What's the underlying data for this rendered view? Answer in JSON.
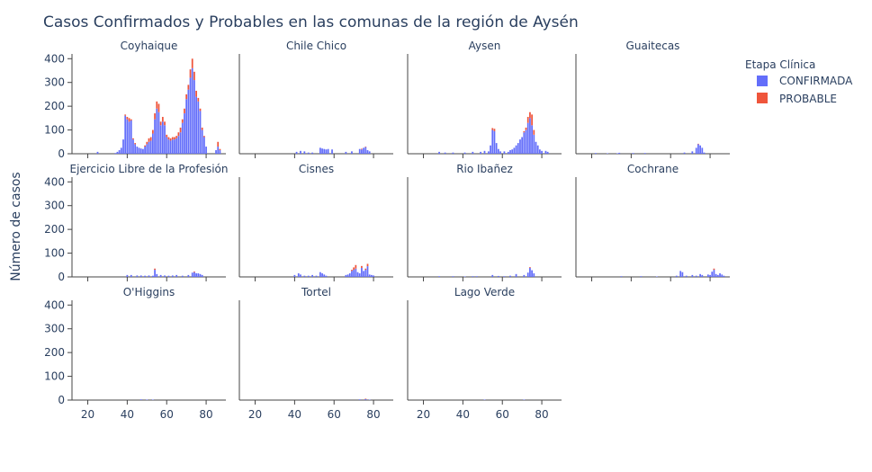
{
  "chart_data": {
    "type": "bar",
    "barmode": "stack",
    "title": "Casos Confirmados y Probables en las comunas de la región de Aysén",
    "ylabel": "Número de casos",
    "xlabel": "",
    "ylim": [
      0,
      420
    ],
    "xlim": [
      12,
      90
    ],
    "x_ticks": [
      20,
      40,
      60,
      80
    ],
    "y_ticks": [
      0,
      100,
      200,
      300,
      400
    ],
    "legend": {
      "title": "Etapa Clínica",
      "position": "top-right",
      "entries": [
        {
          "name": "CONFIRMADA",
          "color": "#636efa"
        },
        {
          "name": "PROBABLE",
          "color": "#ef553b"
        }
      ]
    },
    "panels": [
      {
        "title": "Coyhaique",
        "confirmed": [
          [
            25,
            8
          ],
          [
            34,
            3
          ],
          [
            35,
            8
          ],
          [
            36,
            15
          ],
          [
            37,
            25
          ],
          [
            38,
            60
          ],
          [
            39,
            160
          ],
          [
            40,
            145
          ],
          [
            41,
            135
          ],
          [
            42,
            140
          ],
          [
            43,
            60
          ],
          [
            44,
            40
          ],
          [
            45,
            30
          ],
          [
            46,
            25
          ],
          [
            47,
            22
          ],
          [
            48,
            20
          ],
          [
            49,
            30
          ],
          [
            50,
            40
          ],
          [
            51,
            50
          ],
          [
            52,
            55
          ],
          [
            53,
            85
          ],
          [
            54,
            145
          ],
          [
            55,
            190
          ],
          [
            56,
            175
          ],
          [
            57,
            120
          ],
          [
            58,
            135
          ],
          [
            59,
            120
          ],
          [
            60,
            70
          ],
          [
            61,
            60
          ],
          [
            62,
            55
          ],
          [
            63,
            60
          ],
          [
            64,
            60
          ],
          [
            65,
            65
          ],
          [
            66,
            75
          ],
          [
            67,
            90
          ],
          [
            68,
            130
          ],
          [
            69,
            170
          ],
          [
            70,
            230
          ],
          [
            71,
            270
          ],
          [
            72,
            320
          ],
          [
            73,
            360
          ],
          [
            74,
            310
          ],
          [
            75,
            240
          ],
          [
            76,
            220
          ],
          [
            77,
            180
          ],
          [
            78,
            100
          ],
          [
            79,
            70
          ],
          [
            80,
            30
          ],
          [
            85,
            15
          ],
          [
            86,
            30
          ],
          [
            87,
            15
          ]
        ],
        "probable": [
          [
            38,
            0
          ],
          [
            39,
            5
          ],
          [
            40,
            10
          ],
          [
            41,
            15
          ],
          [
            42,
            5
          ],
          [
            43,
            5
          ],
          [
            44,
            5
          ],
          [
            49,
            5
          ],
          [
            50,
            10
          ],
          [
            51,
            15
          ],
          [
            52,
            15
          ],
          [
            53,
            15
          ],
          [
            54,
            25
          ],
          [
            55,
            30
          ],
          [
            56,
            35
          ],
          [
            57,
            15
          ],
          [
            58,
            20
          ],
          [
            59,
            15
          ],
          [
            60,
            10
          ],
          [
            61,
            10
          ],
          [
            62,
            10
          ],
          [
            63,
            10
          ],
          [
            64,
            10
          ],
          [
            65,
            10
          ],
          [
            66,
            15
          ],
          [
            67,
            20
          ],
          [
            68,
            15
          ],
          [
            69,
            20
          ],
          [
            70,
            20
          ],
          [
            71,
            20
          ],
          [
            72,
            35
          ],
          [
            73,
            40
          ],
          [
            74,
            35
          ],
          [
            75,
            25
          ],
          [
            76,
            15
          ],
          [
            77,
            10
          ],
          [
            78,
            10
          ],
          [
            79,
            5
          ],
          [
            86,
            20
          ],
          [
            87,
            5
          ]
        ]
      },
      {
        "title": "Chile Chico",
        "confirmed": [
          [
            41,
            8
          ],
          [
            43,
            12
          ],
          [
            45,
            10
          ],
          [
            47,
            5
          ],
          [
            49,
            5
          ],
          [
            53,
            25
          ],
          [
            54,
            22
          ],
          [
            55,
            20
          ],
          [
            56,
            18
          ],
          [
            57,
            20
          ],
          [
            59,
            18
          ],
          [
            66,
            8
          ],
          [
            69,
            10
          ],
          [
            73,
            20
          ],
          [
            74,
            18
          ],
          [
            75,
            25
          ],
          [
            76,
            28
          ],
          [
            77,
            15
          ],
          [
            78,
            10
          ]
        ],
        "probable": [
          [
            74,
            3
          ],
          [
            76,
            2
          ]
        ]
      },
      {
        "title": "Aysen",
        "confirmed": [
          [
            28,
            8
          ],
          [
            31,
            5
          ],
          [
            35,
            5
          ],
          [
            41,
            5
          ],
          [
            45,
            8
          ],
          [
            49,
            8
          ],
          [
            51,
            12
          ],
          [
            53,
            10
          ],
          [
            54,
            35
          ],
          [
            55,
            100
          ],
          [
            56,
            95
          ],
          [
            57,
            45
          ],
          [
            58,
            20
          ],
          [
            59,
            10
          ],
          [
            61,
            10
          ],
          [
            63,
            8
          ],
          [
            64,
            15
          ],
          [
            65,
            18
          ],
          [
            66,
            25
          ],
          [
            67,
            35
          ],
          [
            68,
            45
          ],
          [
            69,
            60
          ],
          [
            70,
            70
          ],
          [
            71,
            90
          ],
          [
            72,
            100
          ],
          [
            73,
            130
          ],
          [
            74,
            150
          ],
          [
            75,
            120
          ],
          [
            76,
            80
          ],
          [
            77,
            50
          ],
          [
            78,
            35
          ],
          [
            79,
            18
          ],
          [
            80,
            12
          ],
          [
            82,
            12
          ],
          [
            83,
            8
          ]
        ],
        "probable": [
          [
            55,
            8
          ],
          [
            56,
            10
          ],
          [
            71,
            5
          ],
          [
            72,
            10
          ],
          [
            73,
            25
          ],
          [
            74,
            25
          ],
          [
            75,
            45
          ],
          [
            76,
            20
          ]
        ]
      },
      {
        "title": "Guaitecas",
        "confirmed": [
          [
            22,
            3
          ],
          [
            28,
            2
          ],
          [
            33,
            2
          ],
          [
            34,
            4
          ],
          [
            41,
            3
          ],
          [
            47,
            3
          ],
          [
            67,
            5
          ],
          [
            71,
            10
          ],
          [
            73,
            25
          ],
          [
            74,
            40
          ],
          [
            75,
            35
          ],
          [
            76,
            25
          ],
          [
            77,
            5
          ]
        ],
        "probable": [
          [
            74,
            2
          ]
        ]
      },
      {
        "title": "Ejercicio Libre de la Profesión",
        "confirmed": [
          [
            40,
            8
          ],
          [
            42,
            8
          ],
          [
            45,
            6
          ],
          [
            47,
            6
          ],
          [
            49,
            5
          ],
          [
            51,
            6
          ],
          [
            53,
            5
          ],
          [
            54,
            30
          ],
          [
            55,
            12
          ],
          [
            57,
            8
          ],
          [
            59,
            6
          ],
          [
            61,
            5
          ],
          [
            63,
            6
          ],
          [
            65,
            8
          ],
          [
            68,
            5
          ],
          [
            71,
            8
          ],
          [
            73,
            18
          ],
          [
            74,
            20
          ],
          [
            75,
            15
          ],
          [
            76,
            15
          ],
          [
            77,
            12
          ],
          [
            78,
            8
          ]
        ],
        "probable": [
          [
            54,
            5
          ],
          [
            74,
            3
          ]
        ]
      },
      {
        "title": "Cisnes",
        "confirmed": [
          [
            40,
            8
          ],
          [
            42,
            15
          ],
          [
            43,
            10
          ],
          [
            45,
            5
          ],
          [
            47,
            5
          ],
          [
            49,
            8
          ],
          [
            51,
            5
          ],
          [
            53,
            20
          ],
          [
            54,
            15
          ],
          [
            55,
            10
          ],
          [
            56,
            5
          ],
          [
            66,
            8
          ],
          [
            67,
            10
          ],
          [
            68,
            15
          ],
          [
            69,
            25
          ],
          [
            70,
            30
          ],
          [
            71,
            35
          ],
          [
            72,
            20
          ],
          [
            73,
            15
          ],
          [
            74,
            38
          ],
          [
            75,
            25
          ],
          [
            76,
            30
          ],
          [
            77,
            45
          ],
          [
            78,
            10
          ],
          [
            79,
            8
          ],
          [
            80,
            6
          ]
        ],
        "probable": [
          [
            69,
            5
          ],
          [
            70,
            10
          ],
          [
            71,
            15
          ],
          [
            74,
            8
          ],
          [
            76,
            5
          ],
          [
            77,
            10
          ]
        ]
      },
      {
        "title": "Rio Ibañez",
        "confirmed": [
          [
            28,
            3
          ],
          [
            35,
            3
          ],
          [
            41,
            2
          ],
          [
            45,
            3
          ],
          [
            47,
            3
          ],
          [
            55,
            8
          ],
          [
            58,
            4
          ],
          [
            61,
            3
          ],
          [
            64,
            5
          ],
          [
            67,
            12
          ],
          [
            71,
            8
          ],
          [
            73,
            18
          ],
          [
            74,
            38
          ],
          [
            75,
            28
          ],
          [
            76,
            15
          ]
        ],
        "probable": [
          [
            74,
            3
          ]
        ]
      },
      {
        "title": "Cochrane",
        "confirmed": [
          [
            35,
            3
          ],
          [
            45,
            3
          ],
          [
            53,
            2
          ],
          [
            63,
            5
          ],
          [
            65,
            25
          ],
          [
            66,
            20
          ],
          [
            68,
            5
          ],
          [
            71,
            8
          ],
          [
            73,
            5
          ],
          [
            75,
            12
          ],
          [
            76,
            8
          ],
          [
            79,
            10
          ],
          [
            80,
            8
          ],
          [
            81,
            22
          ],
          [
            82,
            30
          ],
          [
            83,
            12
          ],
          [
            84,
            8
          ],
          [
            85,
            15
          ],
          [
            86,
            10
          ],
          [
            87,
            5
          ]
        ],
        "probable": [
          [
            82,
            5
          ]
        ]
      },
      {
        "title": "O'Higgins",
        "confirmed": [
          [
            47,
            3
          ],
          [
            50,
            2
          ],
          [
            53,
            2
          ]
        ],
        "probable": []
      },
      {
        "title": "Tortel",
        "confirmed": [
          [
            73,
            3
          ],
          [
            76,
            4
          ],
          [
            78,
            2
          ]
        ],
        "probable": [
          [
            76,
            2
          ]
        ]
      },
      {
        "title": "Lago Verde",
        "confirmed": [
          [
            51,
            2
          ],
          [
            71,
            2
          ]
        ],
        "probable": []
      }
    ]
  }
}
